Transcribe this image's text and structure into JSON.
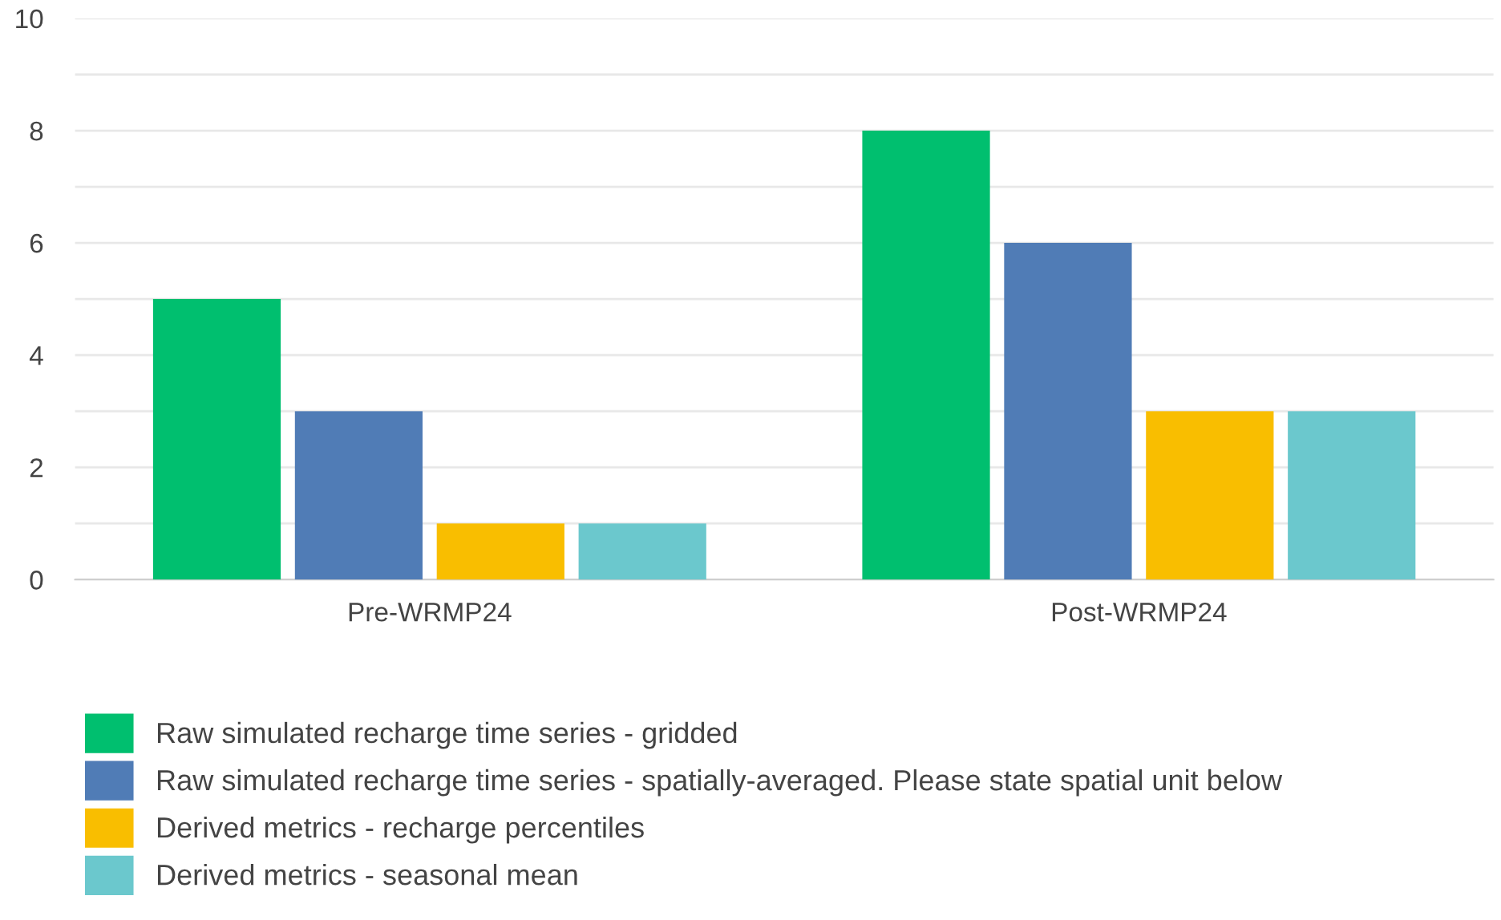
{
  "chart_data": {
    "type": "bar",
    "categories": [
      "Pre-WRMP24",
      "Post-WRMP24"
    ],
    "series": [
      {
        "name": "Raw simulated recharge time series - gridded",
        "color": "#00bf6f",
        "values": [
          5,
          8
        ]
      },
      {
        "name": "Raw simulated recharge time series - spatially-averaged. Please state spatial unit below",
        "color": "#507cb6",
        "values": [
          3,
          6
        ]
      },
      {
        "name": "Derived metrics - recharge percentiles",
        "color": "#f9be00",
        "values": [
          1,
          3
        ]
      },
      {
        "name": "Derived metrics - seasonal mean",
        "color": "#6bc8cd",
        "values": [
          1,
          3
        ]
      }
    ],
    "ylim": [
      0,
      10
    ],
    "yticks": [
      0,
      {
        "value": 1,
        "label": null
      },
      2,
      {
        "value": 3,
        "label": null
      },
      4,
      {
        "value": 5,
        "label": null
      },
      6,
      {
        "value": 7,
        "label": null
      },
      8,
      {
        "value": 9,
        "label": null
      },
      10
    ],
    "grid": "y",
    "legend": "bottom"
  }
}
